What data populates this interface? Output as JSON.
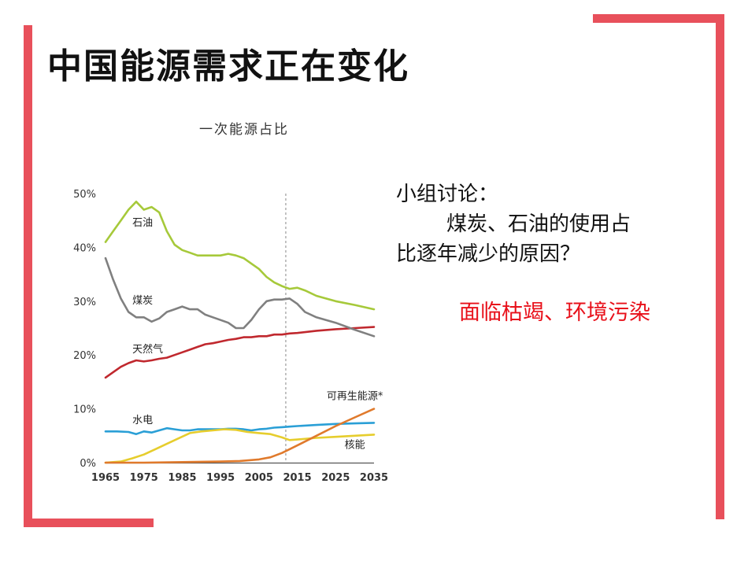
{
  "slide": {
    "title": "中国能源需求正在变化",
    "accent_color": "#e8505b"
  },
  "discussion": {
    "heading": "小组讨论：",
    "question_line1": "煤炭、石油的使用占",
    "question_line2": "比逐年减少的原因？",
    "answer": "面临枯竭、环境污染",
    "answer_color": "#e8101a"
  },
  "chart_data": {
    "type": "line",
    "title": "一次能源占比",
    "xlabel": "",
    "ylabel": "",
    "x_ticks": [
      "1965",
      "1975",
      "1985",
      "1995",
      "2005",
      "2015",
      "2025",
      "2035"
    ],
    "y_ticks": [
      "0%",
      "10%",
      "20%",
      "30%",
      "40%",
      "50%"
    ],
    "xlim": [
      1965,
      2035
    ],
    "ylim": [
      0,
      50
    ],
    "forecast_divider_year": 2012,
    "grid": false,
    "series": [
      {
        "name": "石油",
        "color": "#a6c93a",
        "points": [
          [
            1965,
            41
          ],
          [
            1967,
            43
          ],
          [
            1969,
            45
          ],
          [
            1971,
            47
          ],
          [
            1973,
            48.5
          ],
          [
            1975,
            47
          ],
          [
            1977,
            47.5
          ],
          [
            1979,
            46.5
          ],
          [
            1981,
            43
          ],
          [
            1983,
            40.5
          ],
          [
            1985,
            39.5
          ],
          [
            1987,
            39
          ],
          [
            1989,
            38.5
          ],
          [
            1991,
            38.5
          ],
          [
            1993,
            38.5
          ],
          [
            1995,
            38.5
          ],
          [
            1997,
            38.8
          ],
          [
            1999,
            38.5
          ],
          [
            2001,
            38
          ],
          [
            2003,
            37
          ],
          [
            2005,
            36
          ],
          [
            2007,
            34.5
          ],
          [
            2009,
            33.5
          ],
          [
            2011,
            32.8
          ],
          [
            2013,
            32.3
          ],
          [
            2015,
            32.5
          ],
          [
            2017,
            32
          ],
          [
            2020,
            31
          ],
          [
            2025,
            30
          ],
          [
            2030,
            29.3
          ],
          [
            2035,
            28.5
          ]
        ]
      },
      {
        "name": "煤炭",
        "color": "#808080",
        "points": [
          [
            1965,
            38
          ],
          [
            1967,
            34
          ],
          [
            1969,
            30.5
          ],
          [
            1971,
            28
          ],
          [
            1973,
            27
          ],
          [
            1975,
            27
          ],
          [
            1977,
            26.2
          ],
          [
            1979,
            26.8
          ],
          [
            1981,
            28
          ],
          [
            1983,
            28.5
          ],
          [
            1985,
            29
          ],
          [
            1987,
            28.5
          ],
          [
            1989,
            28.5
          ],
          [
            1991,
            27.5
          ],
          [
            1993,
            27
          ],
          [
            1995,
            26.5
          ],
          [
            1997,
            26
          ],
          [
            1999,
            25
          ],
          [
            2001,
            25
          ],
          [
            2003,
            26.5
          ],
          [
            2005,
            28.5
          ],
          [
            2007,
            30
          ],
          [
            2009,
            30.3
          ],
          [
            2011,
            30.3
          ],
          [
            2013,
            30.5
          ],
          [
            2015,
            29.5
          ],
          [
            2017,
            28
          ],
          [
            2020,
            27
          ],
          [
            2025,
            26
          ],
          [
            2030,
            24.7
          ],
          [
            2035,
            23.5
          ]
        ]
      },
      {
        "name": "天然气",
        "color": "#c0282e",
        "points": [
          [
            1965,
            15.8
          ],
          [
            1967,
            16.8
          ],
          [
            1969,
            17.8
          ],
          [
            1971,
            18.5
          ],
          [
            1973,
            19
          ],
          [
            1975,
            18.8
          ],
          [
            1977,
            19
          ],
          [
            1979,
            19.3
          ],
          [
            1981,
            19.5
          ],
          [
            1983,
            20
          ],
          [
            1985,
            20.5
          ],
          [
            1987,
            21
          ],
          [
            1989,
            21.5
          ],
          [
            1991,
            22
          ],
          [
            1993,
            22.2
          ],
          [
            1995,
            22.5
          ],
          [
            1997,
            22.8
          ],
          [
            1999,
            23
          ],
          [
            2001,
            23.3
          ],
          [
            2003,
            23.3
          ],
          [
            2005,
            23.5
          ],
          [
            2007,
            23.5
          ],
          [
            2009,
            23.8
          ],
          [
            2011,
            23.8
          ],
          [
            2013,
            24
          ],
          [
            2015,
            24.1
          ],
          [
            2020,
            24.5
          ],
          [
            2025,
            24.8
          ],
          [
            2030,
            25
          ],
          [
            2035,
            25.2
          ]
        ]
      },
      {
        "name": "水电",
        "color": "#2a9fd6",
        "points": [
          [
            1965,
            5.8
          ],
          [
            1968,
            5.8
          ],
          [
            1971,
            5.7
          ],
          [
            1973,
            5.3
          ],
          [
            1975,
            5.8
          ],
          [
            1977,
            5.6
          ],
          [
            1979,
            6
          ],
          [
            1981,
            6.4
          ],
          [
            1983,
            6.2
          ],
          [
            1985,
            6
          ],
          [
            1987,
            6
          ],
          [
            1989,
            6.2
          ],
          [
            1991,
            6.2
          ],
          [
            1993,
            6.2
          ],
          [
            1995,
            6.2
          ],
          [
            1997,
            6.3
          ],
          [
            1999,
            6.3
          ],
          [
            2001,
            6.2
          ],
          [
            2003,
            6
          ],
          [
            2005,
            6.2
          ],
          [
            2007,
            6.3
          ],
          [
            2009,
            6.5
          ],
          [
            2011,
            6.6
          ],
          [
            2013,
            6.7
          ],
          [
            2015,
            6.8
          ],
          [
            2020,
            7
          ],
          [
            2025,
            7.2
          ],
          [
            2030,
            7.3
          ],
          [
            2035,
            7.4
          ]
        ]
      },
      {
        "name": "核能",
        "color": "#e6cd2d",
        "points": [
          [
            1965,
            0
          ],
          [
            1969,
            0.2
          ],
          [
            1972,
            0.8
          ],
          [
            1975,
            1.5
          ],
          [
            1978,
            2.5
          ],
          [
            1981,
            3.5
          ],
          [
            1984,
            4.5
          ],
          [
            1987,
            5.5
          ],
          [
            1990,
            5.8
          ],
          [
            1993,
            6
          ],
          [
            1996,
            6.2
          ],
          [
            1999,
            6.1
          ],
          [
            2002,
            5.7
          ],
          [
            2005,
            5.5
          ],
          [
            2008,
            5.3
          ],
          [
            2011,
            4.7
          ],
          [
            2013,
            4.2
          ],
          [
            2015,
            4.3
          ],
          [
            2020,
            4.6
          ],
          [
            2025,
            4.8
          ],
          [
            2030,
            5
          ],
          [
            2035,
            5.2
          ]
        ]
      },
      {
        "name": "可再生能源*",
        "color": "#e07a2c",
        "points": [
          [
            1965,
            0
          ],
          [
            1975,
            0
          ],
          [
            1985,
            0.1
          ],
          [
            1995,
            0.2
          ],
          [
            2000,
            0.3
          ],
          [
            2005,
            0.6
          ],
          [
            2008,
            1
          ],
          [
            2011,
            1.8
          ],
          [
            2013,
            2.5
          ],
          [
            2015,
            3.2
          ],
          [
            2020,
            5
          ],
          [
            2025,
            6.8
          ],
          [
            2030,
            8.4
          ],
          [
            2035,
            10
          ]
        ]
      }
    ],
    "annotations": [
      {
        "text": "石油",
        "x": 1972,
        "y": 44
      },
      {
        "text": "煤炭",
        "x": 1972,
        "y": 29.5
      },
      {
        "text": "天然气",
        "x": 1972,
        "y": 20.5
      },
      {
        "text": "水电",
        "x": 1972,
        "y": 7.3
      },
      {
        "text": "可再生能源*",
        "x": 2030,
        "y": 11.8
      },
      {
        "text": "核能",
        "x": 2030,
        "y": 2.7
      }
    ]
  }
}
